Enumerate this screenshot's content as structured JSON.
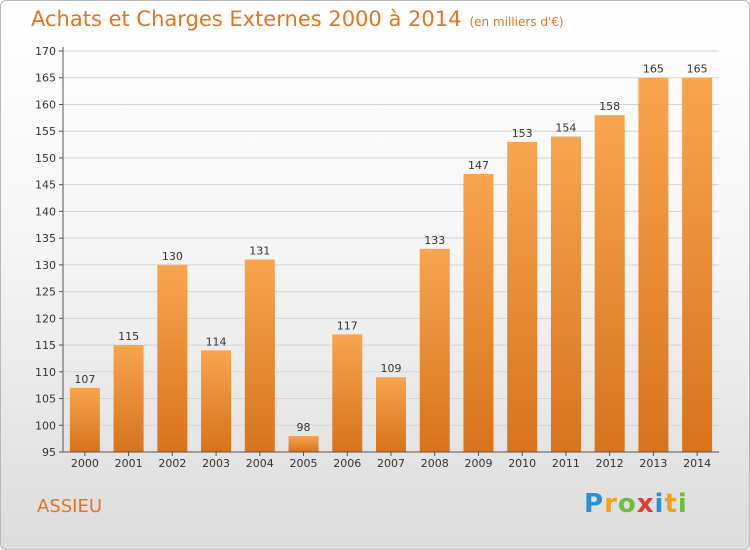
{
  "header": {
    "title": "Achats et Charges Externes 2000 à 2014",
    "subtitle": "(en milliers d'€)"
  },
  "footer": {
    "place": "ASSIEU",
    "logo": [
      "P",
      "r",
      "o",
      "x",
      "i",
      "t",
      "i"
    ],
    "logo_colors": [
      "#2c8fd6",
      "#f1a21b",
      "#6cbf3a",
      "#e23a2e",
      "#2c8fd6",
      "#f1a21b",
      "#6cbf3a"
    ]
  },
  "colors": {
    "bar_light": "#f7a54e",
    "bar_dark": "#d8731c",
    "grid": "#d4d4d4",
    "axis": "#555555",
    "title": "#e8731e"
  },
  "chart_data": {
    "type": "bar",
    "categories": [
      "2000",
      "2001",
      "2002",
      "2003",
      "2004",
      "2005",
      "2006",
      "2007",
      "2008",
      "2009",
      "2010",
      "2011",
      "2012",
      "2013",
      "2014"
    ],
    "values": [
      107,
      115,
      130,
      114,
      131,
      98,
      117,
      109,
      133,
      147,
      153,
      154,
      158,
      165,
      165
    ],
    "ylim": [
      95,
      170
    ],
    "yticks": [
      95,
      100,
      105,
      110,
      115,
      120,
      125,
      130,
      135,
      140,
      145,
      150,
      155,
      160,
      165,
      170
    ],
    "grid": true,
    "legend": "none"
  }
}
